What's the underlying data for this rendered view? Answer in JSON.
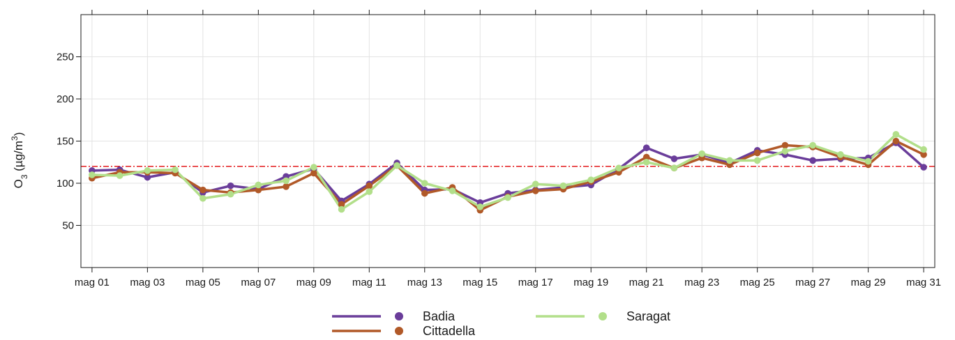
{
  "chart_data": {
    "type": "line",
    "ylabel_parts": [
      "O",
      "3",
      " (µg/m",
      "3",
      ")"
    ],
    "ylim": [
      0,
      300
    ],
    "yticks": [
      50,
      100,
      150,
      200,
      250
    ],
    "xlim": [
      0.6,
      31.4
    ],
    "x": [
      1,
      2,
      3,
      4,
      5,
      6,
      7,
      8,
      9,
      10,
      11,
      12,
      13,
      14,
      15,
      16,
      17,
      18,
      19,
      20,
      21,
      22,
      23,
      24,
      25,
      26,
      27,
      28,
      29,
      30,
      31
    ],
    "xticks": [
      {
        "day": 1,
        "label": "mag 01"
      },
      {
        "day": 3,
        "label": "mag 03"
      },
      {
        "day": 5,
        "label": "mag 05"
      },
      {
        "day": 7,
        "label": "mag 07"
      },
      {
        "day": 9,
        "label": "mag 09"
      },
      {
        "day": 11,
        "label": "mag 11"
      },
      {
        "day": 13,
        "label": "mag 13"
      },
      {
        "day": 15,
        "label": "mag 15"
      },
      {
        "day": 17,
        "label": "mag 17"
      },
      {
        "day": 19,
        "label": "mag 19"
      },
      {
        "day": 21,
        "label": "mag 21"
      },
      {
        "day": 23,
        "label": "mag 23"
      },
      {
        "day": 25,
        "label": "mag 25"
      },
      {
        "day": 27,
        "label": "mag 27"
      },
      {
        "day": 29,
        "label": "mag 29"
      },
      {
        "day": 31,
        "label": "mag 31"
      }
    ],
    "threshold": {
      "value": 120,
      "color": "#e31a1c",
      "style": "dashdot"
    },
    "grid": true,
    "legend_position": "bottom",
    "series": [
      {
        "name": "Badia",
        "color": "#6a3d9a",
        "values": [
          115,
          116,
          107,
          113,
          89,
          97,
          93,
          108,
          117,
          79,
          99,
          124,
          92,
          93,
          77,
          88,
          92,
          95,
          98,
          117,
          142,
          129,
          134,
          124,
          139,
          134,
          127,
          129,
          130,
          148,
          119
        ]
      },
      {
        "name": "Cittadella",
        "color": "#b15928",
        "values": [
          106,
          113,
          113,
          112,
          92,
          89,
          92,
          96,
          112,
          75,
          97,
          121,
          88,
          95,
          68,
          84,
          91,
          93,
          102,
          113,
          131,
          118,
          130,
          122,
          136,
          145,
          143,
          131,
          122,
          150,
          134
        ]
      },
      {
        "name": "Saragat",
        "color": "#b2df8a",
        "values": [
          110,
          109,
          115,
          116,
          82,
          87,
          98,
          103,
          119,
          69,
          90,
          121,
          100,
          91,
          72,
          83,
          99,
          97,
          104,
          118,
          125,
          118,
          135,
          127,
          127,
          138,
          145,
          134,
          126,
          158,
          140
        ]
      }
    ]
  }
}
